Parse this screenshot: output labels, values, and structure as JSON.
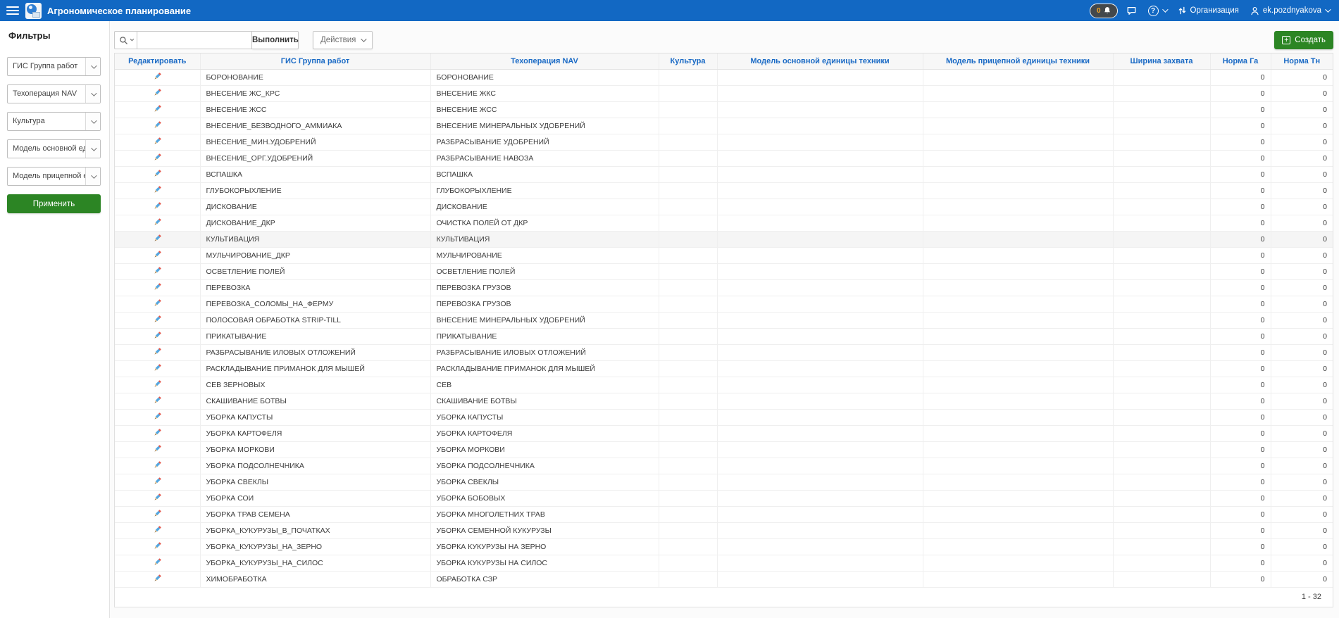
{
  "colors": {
    "header_blue": "#1268C3",
    "accent_green": "#2C8524",
    "link_blue": "#1A6AC5",
    "notification_badge_orange": "#F5A623"
  },
  "icons": {
    "menu": "hamburger-icon",
    "notifications": "bell-icon",
    "chat": "speech-bubble-icon",
    "help": "question-circle-icon",
    "organization": "sync-arrows-icon",
    "user": "person-icon",
    "search": "magnifier-icon",
    "edit": "pencil-icon",
    "create": "plus-icon"
  },
  "header": {
    "title": "Агрономическое планирование",
    "notifications_count": "0",
    "organization_label": "Организация",
    "user_name": "ek.pozdnyakova"
  },
  "sidebar": {
    "title": "Фильтры",
    "apply_label": "Применить",
    "filters": [
      {
        "label": "ГИС Группа работ"
      },
      {
        "label": "Техоперация NAV"
      },
      {
        "label": "Культура"
      },
      {
        "label": "Модель основной един..."
      },
      {
        "label": "Модель прицепной еди..."
      }
    ]
  },
  "toolbar": {
    "search_value": "",
    "go_label": "Выполнить",
    "actions_label": "Действия",
    "create_label": "Создать"
  },
  "table": {
    "columns": [
      "Редактировать",
      "ГИС Группа работ",
      "Техоперация NAV",
      "Культура",
      "Модель основной единицы техники",
      "Модель прицепной единицы техники",
      "Ширина захвата",
      "Норма Га",
      "Норма Тн"
    ],
    "rows": [
      {
        "gis": "БОРОНОВАНИЕ",
        "nav": "БОРОНОВАНИЕ",
        "kultura": "",
        "model_main": "",
        "model_trailer": "",
        "width": "",
        "norm_ga": "0",
        "norm_tn": "0",
        "highlighted": false
      },
      {
        "gis": "ВНЕСЕНИЕ ЖС_КРС",
        "nav": "ВНЕСЕНИЕ ЖКС",
        "kultura": "",
        "model_main": "",
        "model_trailer": "",
        "width": "",
        "norm_ga": "0",
        "norm_tn": "0",
        "highlighted": false
      },
      {
        "gis": "ВНЕСЕНИЕ ЖСС",
        "nav": "ВНЕСЕНИЕ ЖСС",
        "kultura": "",
        "model_main": "",
        "model_trailer": "",
        "width": "",
        "norm_ga": "0",
        "norm_tn": "0",
        "highlighted": false
      },
      {
        "gis": "ВНЕСЕНИЕ_БЕЗВОДНОГО_АММИАКА",
        "nav": "ВНЕСЕНИЕ МИНЕРАЛЬНЫХ УДОБРЕНИЙ",
        "kultura": "",
        "model_main": "",
        "model_trailer": "",
        "width": "",
        "norm_ga": "0",
        "norm_tn": "0",
        "highlighted": false
      },
      {
        "gis": "ВНЕСЕНИЕ_МИН.УДОБРЕНИЙ",
        "nav": "РАЗБРАСЫВАНИЕ УДОБРЕНИЙ",
        "kultura": "",
        "model_main": "",
        "model_trailer": "",
        "width": "",
        "norm_ga": "0",
        "norm_tn": "0",
        "highlighted": false
      },
      {
        "gis": "ВНЕСЕНИЕ_ОРГ.УДОБРЕНИЙ",
        "nav": "РАЗБРАСЫВАНИЕ НАВОЗА",
        "kultura": "",
        "model_main": "",
        "model_trailer": "",
        "width": "",
        "norm_ga": "0",
        "norm_tn": "0",
        "highlighted": false
      },
      {
        "gis": "ВСПАШКА",
        "nav": "ВСПАШКА",
        "kultura": "",
        "model_main": "",
        "model_trailer": "",
        "width": "",
        "norm_ga": "0",
        "norm_tn": "0",
        "highlighted": false
      },
      {
        "gis": "ГЛУБОКОРЫХЛЕНИЕ",
        "nav": "ГЛУБОКОРЫХЛЕНИЕ",
        "kultura": "",
        "model_main": "",
        "model_trailer": "",
        "width": "",
        "norm_ga": "0",
        "norm_tn": "0",
        "highlighted": false
      },
      {
        "gis": "ДИСКОВАНИЕ",
        "nav": "ДИСКОВАНИЕ",
        "kultura": "",
        "model_main": "",
        "model_trailer": "",
        "width": "",
        "norm_ga": "0",
        "norm_tn": "0",
        "highlighted": false
      },
      {
        "gis": "ДИСКОВАНИЕ_ДКР",
        "nav": "ОЧИСТКА ПОЛЕЙ ОТ ДКР",
        "kultura": "",
        "model_main": "",
        "model_trailer": "",
        "width": "",
        "norm_ga": "0",
        "norm_tn": "0",
        "highlighted": false
      },
      {
        "gis": "КУЛЬТИВАЦИЯ",
        "nav": "КУЛЬТИВАЦИЯ",
        "kultura": "",
        "model_main": "",
        "model_trailer": "",
        "width": "",
        "norm_ga": "0",
        "norm_tn": "0",
        "highlighted": true
      },
      {
        "gis": "МУЛЬЧИРОВАНИЕ_ДКР",
        "nav": "МУЛЬЧИРОВАНИЕ",
        "kultura": "",
        "model_main": "",
        "model_trailer": "",
        "width": "",
        "norm_ga": "0",
        "norm_tn": "0",
        "highlighted": false
      },
      {
        "gis": "ОСВЕТЛЕНИЕ ПОЛЕЙ",
        "nav": "ОСВЕТЛЕНИЕ ПОЛЕЙ",
        "kultura": "",
        "model_main": "",
        "model_trailer": "",
        "width": "",
        "norm_ga": "0",
        "norm_tn": "0",
        "highlighted": false
      },
      {
        "gis": "ПЕРЕВОЗКА",
        "nav": "ПЕРЕВОЗКА ГРУЗОВ",
        "kultura": "",
        "model_main": "",
        "model_trailer": "",
        "width": "",
        "norm_ga": "0",
        "norm_tn": "0",
        "highlighted": false
      },
      {
        "gis": "ПЕРЕВОЗКА_СОЛОМЫ_НА_ФЕРМУ",
        "nav": "ПЕРЕВОЗКА ГРУЗОВ",
        "kultura": "",
        "model_main": "",
        "model_trailer": "",
        "width": "",
        "norm_ga": "0",
        "norm_tn": "0",
        "highlighted": false
      },
      {
        "gis": "ПОЛОСОВАЯ ОБРАБОТКА STRIP-TILL",
        "nav": "ВНЕСЕНИЕ МИНЕРАЛЬНЫХ УДОБРЕНИЙ",
        "kultura": "",
        "model_main": "",
        "model_trailer": "",
        "width": "",
        "norm_ga": "0",
        "norm_tn": "0",
        "highlighted": false
      },
      {
        "gis": "ПРИКАТЫВАНИЕ",
        "nav": "ПРИКАТЫВАНИЕ",
        "kultura": "",
        "model_main": "",
        "model_trailer": "",
        "width": "",
        "norm_ga": "0",
        "norm_tn": "0",
        "highlighted": false
      },
      {
        "gis": "РАЗБРАСЫВАНИЕ ИЛОВЫХ ОТЛОЖЕНИЙ",
        "nav": "РАЗБРАСЫВАНИЕ ИЛОВЫХ ОТЛОЖЕНИЙ",
        "kultura": "",
        "model_main": "",
        "model_trailer": "",
        "width": "",
        "norm_ga": "0",
        "norm_tn": "0",
        "highlighted": false
      },
      {
        "gis": "РАСКЛАДЫВАНИЕ ПРИМАНОК ДЛЯ МЫШЕЙ",
        "nav": "РАСКЛАДЫВАНИЕ ПРИМАНОК ДЛЯ МЫШЕЙ",
        "kultura": "",
        "model_main": "",
        "model_trailer": "",
        "width": "",
        "norm_ga": "0",
        "norm_tn": "0",
        "highlighted": false
      },
      {
        "gis": "СЕВ ЗЕРНОВЫХ",
        "nav": "СЕВ",
        "kultura": "",
        "model_main": "",
        "model_trailer": "",
        "width": "",
        "norm_ga": "0",
        "norm_tn": "0",
        "highlighted": false
      },
      {
        "gis": "СКАШИВАНИЕ БОТВЫ",
        "nav": "СКАШИВАНИЕ БОТВЫ",
        "kultura": "",
        "model_main": "",
        "model_trailer": "",
        "width": "",
        "norm_ga": "0",
        "norm_tn": "0",
        "highlighted": false
      },
      {
        "gis": "УБОРКА КАПУСТЫ",
        "nav": "УБОРКА КАПУСТЫ",
        "kultura": "",
        "model_main": "",
        "model_trailer": "",
        "width": "",
        "norm_ga": "0",
        "norm_tn": "0",
        "highlighted": false
      },
      {
        "gis": "УБОРКА КАРТОФЕЛЯ",
        "nav": "УБОРКА КАРТОФЕЛЯ",
        "kultura": "",
        "model_main": "",
        "model_trailer": "",
        "width": "",
        "norm_ga": "0",
        "norm_tn": "0",
        "highlighted": false
      },
      {
        "gis": "УБОРКА МОРКОВИ",
        "nav": "УБОРКА МОРКОВИ",
        "kultura": "",
        "model_main": "",
        "model_trailer": "",
        "width": "",
        "norm_ga": "0",
        "norm_tn": "0",
        "highlighted": false
      },
      {
        "gis": "УБОРКА ПОДСОЛНЕЧНИКА",
        "nav": "УБОРКА ПОДСОЛНЕЧНИКА",
        "kultura": "",
        "model_main": "",
        "model_trailer": "",
        "width": "",
        "norm_ga": "0",
        "norm_tn": "0",
        "highlighted": false
      },
      {
        "gis": "УБОРКА СВЕКЛЫ",
        "nav": "УБОРКА СВЕКЛЫ",
        "kultura": "",
        "model_main": "",
        "model_trailer": "",
        "width": "",
        "norm_ga": "0",
        "norm_tn": "0",
        "highlighted": false
      },
      {
        "gis": "УБОРКА СОИ",
        "nav": "УБОРКА БОБОВЫХ",
        "kultura": "",
        "model_main": "",
        "model_trailer": "",
        "width": "",
        "norm_ga": "0",
        "norm_tn": "0",
        "highlighted": false
      },
      {
        "gis": "УБОРКА ТРАВ СЕМЕНА",
        "nav": "УБОРКА МНОГОЛЕТНИХ ТРАВ",
        "kultura": "",
        "model_main": "",
        "model_trailer": "",
        "width": "",
        "norm_ga": "0",
        "norm_tn": "0",
        "highlighted": false
      },
      {
        "gis": "УБОРКА_КУКУРУЗЫ_В_ПОЧАТКАХ",
        "nav": "УБОРКА СЕМЕННОЙ КУКУРУЗЫ",
        "kultura": "",
        "model_main": "",
        "model_trailer": "",
        "width": "",
        "norm_ga": "0",
        "norm_tn": "0",
        "highlighted": false
      },
      {
        "gis": "УБОРКА_КУКУРУЗЫ_НА_ЗЕРНО",
        "nav": "УБОРКА КУКУРУЗЫ НА ЗЕРНО",
        "kultura": "",
        "model_main": "",
        "model_trailer": "",
        "width": "",
        "norm_ga": "0",
        "norm_tn": "0",
        "highlighted": false
      },
      {
        "gis": "УБОРКА_КУКУРУЗЫ_НА_СИЛОС",
        "nav": "УБОРКА КУКУРУЗЫ НА СИЛОС",
        "kultura": "",
        "model_main": "",
        "model_trailer": "",
        "width": "",
        "norm_ga": "0",
        "norm_tn": "0",
        "highlighted": false
      },
      {
        "gis": "ХИМОБРАБОТКА",
        "nav": "ОБРАБОТКА СЗР",
        "kultura": "",
        "model_main": "",
        "model_trailer": "",
        "width": "",
        "norm_ga": "0",
        "norm_tn": "0",
        "highlighted": false
      }
    ],
    "pagination": "1 - 32"
  }
}
